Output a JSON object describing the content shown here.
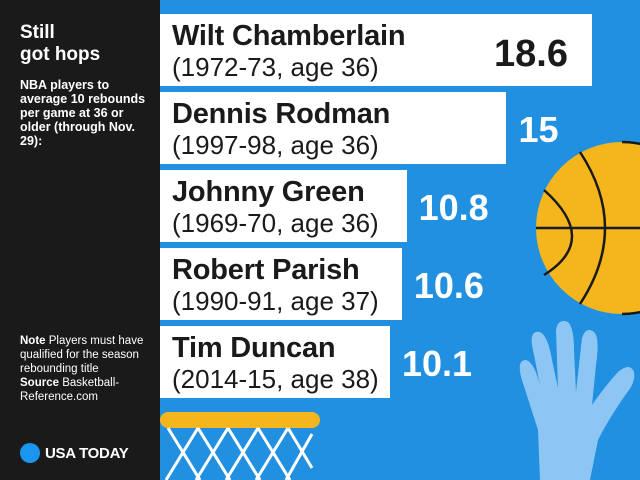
{
  "sidebar": {
    "title_line1": "Still",
    "title_line2": "got hops",
    "subtitle": "NBA players to average 10 rebounds per game at 36 or older (through Nov. 29):",
    "note_label": "Note",
    "note_text": " Players must have qualified for the season rebounding title",
    "source_label": "Source",
    "source_text": " Basketball-Reference.com",
    "logo_text": "USA TODAY"
  },
  "colors": {
    "background": "#2290e0",
    "sidebar": "#1a1a1a",
    "bar": "#ffffff",
    "ball": "#f5b51d",
    "rim": "#f5b51d",
    "hand": "#8ec6f3",
    "logo_dot": "#1b96f0"
  },
  "chart_data": {
    "type": "bar",
    "orientation": "horizontal",
    "title": "Still got hops",
    "subtitle": "NBA players to average 10 rebounds per game at 36 or older (through Nov. 29):",
    "categories": [
      "Wilt Chamberlain",
      "Dennis Rodman",
      "Johnny Green",
      "Robert Parish",
      "Tim Duncan"
    ],
    "seasons": [
      "(1972-73, age 36)",
      "(1997-98, age 36)",
      "(1969-70, age 36)",
      "(1990-91, age 37)",
      "(2014-15, age 38)"
    ],
    "values": [
      18.6,
      15,
      10.8,
      10.6,
      10.1
    ],
    "value_labels": [
      "18.6",
      "15",
      "10.8",
      "10.6",
      "10.1"
    ],
    "value_unit": "rebounds per game"
  }
}
